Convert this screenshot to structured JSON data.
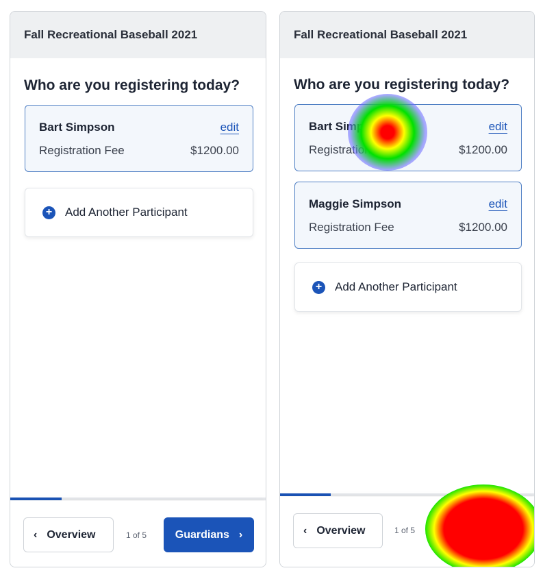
{
  "left_panel": {
    "title": "Fall Recreational Baseball 2021",
    "question": "Who are you registering today?",
    "participants": [
      {
        "name": "Bart Simpson",
        "edit": "edit",
        "fee_label": "Registration Fee",
        "fee_value": "$1200.00"
      }
    ],
    "add_participant": "Add Another Participant",
    "progress": 0.2,
    "back_label": "Overview",
    "step": "1 of 5",
    "next_label": "Guardians"
  },
  "right_panel": {
    "title": "Fall Recreational Baseball 2021",
    "question": "Who are you registering today?",
    "participants": [
      {
        "name": "Bart Simpson",
        "edit": "edit",
        "fee_label": "Registration Fee",
        "fee_value": "$1200.00"
      },
      {
        "name": "Maggie Simpson",
        "edit": "edit",
        "fee_label": "Registration Fee",
        "fee_value": "$1200.00"
      }
    ],
    "add_participant": "Add Another Participant",
    "progress": 0.2,
    "back_label": "Overview",
    "step": "1 of 5"
  },
  "icons": {
    "plus": "plus-circle-icon",
    "back": "chevron-left-icon",
    "next": "chevron-right-icon"
  },
  "colors": {
    "primary": "#1b54b8",
    "card_border": "#4f7fc4",
    "card_bg": "#f3f7fc",
    "header_bg": "#eef0f2"
  }
}
